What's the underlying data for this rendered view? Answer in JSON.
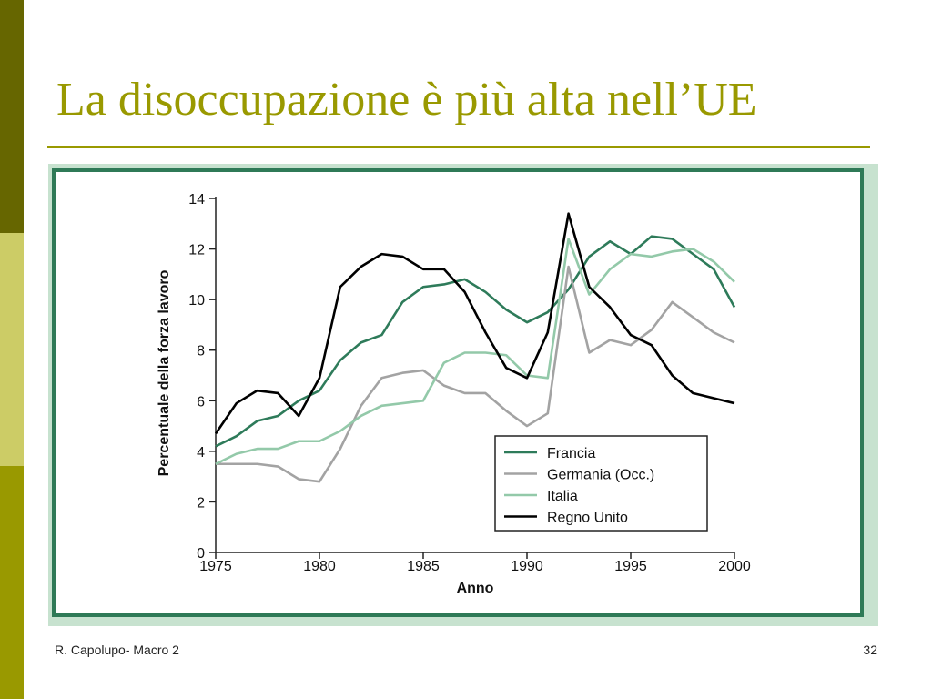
{
  "slide": {
    "title": "La disoccupazione è più alta nell’UE",
    "footer_left": "R. Capolupo- Macro 2",
    "page_number": "32"
  },
  "colors": {
    "accent": "#999900",
    "bar_dark": "#666600",
    "bar_light": "#cccc66",
    "frame": "#2f7a57",
    "frame_bg": "#c7e2cf"
  },
  "chart_data": {
    "type": "line",
    "title": "",
    "xlabel": "Anno",
    "ylabel": "Percentuale della forza lavoro",
    "xlim": [
      1975,
      2000
    ],
    "ylim": [
      0,
      14
    ],
    "xticks": [
      1975,
      1980,
      1985,
      1990,
      1995,
      2000
    ],
    "yticks": [
      0,
      2,
      4,
      6,
      8,
      10,
      12,
      14
    ],
    "grid": false,
    "legend_position": "bottom-right",
    "x": [
      1975,
      1976,
      1977,
      1978,
      1979,
      1980,
      1981,
      1982,
      1983,
      1984,
      1985,
      1986,
      1987,
      1988,
      1989,
      1990,
      1991,
      1992,
      1993,
      1994,
      1995,
      1996,
      1997,
      1998,
      1999,
      2000
    ],
    "series": [
      {
        "name": "Francia",
        "color": "#2e7b5a",
        "values": [
          4.2,
          4.6,
          5.2,
          5.4,
          6.0,
          6.4,
          7.6,
          8.3,
          8.6,
          9.9,
          10.5,
          10.6,
          10.8,
          10.3,
          9.6,
          9.1,
          9.5,
          10.4,
          11.7,
          12.3,
          11.8,
          12.5,
          12.4,
          11.8,
          11.2,
          9.7
        ]
      },
      {
        "name": "Germania (Occ.)",
        "color": "#a3a3a3",
        "values": [
          3.5,
          3.5,
          3.5,
          3.4,
          2.9,
          2.8,
          4.1,
          5.8,
          6.9,
          7.1,
          7.2,
          6.6,
          6.3,
          6.3,
          5.6,
          5.0,
          5.5,
          11.3,
          7.9,
          8.4,
          8.2,
          8.8,
          9.9,
          9.3,
          8.7,
          8.3
        ]
      },
      {
        "name": "Italia",
        "color": "#93c9a9",
        "values": [
          3.5,
          3.9,
          4.1,
          4.1,
          4.4,
          4.4,
          4.8,
          5.4,
          5.8,
          5.9,
          6.0,
          7.5,
          7.9,
          7.9,
          7.8,
          7.0,
          6.9,
          12.4,
          10.2,
          11.2,
          11.8,
          11.7,
          11.9,
          12.0,
          11.5,
          10.7
        ]
      },
      {
        "name": "Regno Unito",
        "color": "#000000",
        "values": [
          4.7,
          5.9,
          6.4,
          6.3,
          5.4,
          6.9,
          10.5,
          11.3,
          11.8,
          11.7,
          11.2,
          11.2,
          10.3,
          8.7,
          7.3,
          6.9,
          8.7,
          13.4,
          10.5,
          9.7,
          8.6,
          8.2,
          7.0,
          6.3,
          6.1,
          5.9
        ]
      }
    ]
  }
}
